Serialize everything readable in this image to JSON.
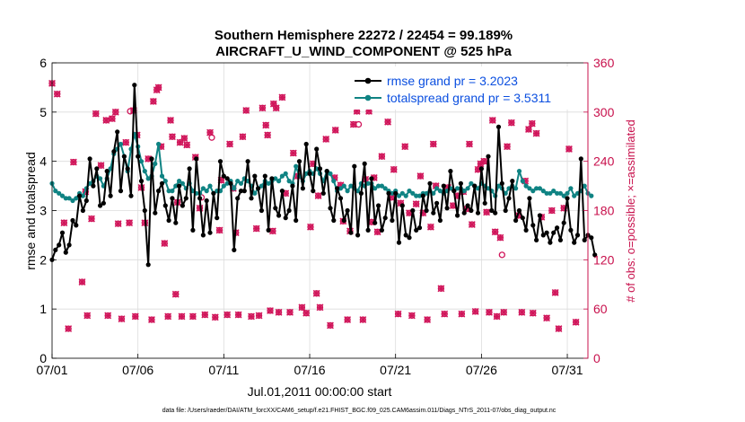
{
  "chart_data": {
    "type": "line",
    "title": "Southern Hemisphere 22272 / 22454 = 99.189%",
    "subtitle": "AIRCRAFT_U_WIND_COMPONENT @ 525 hPa",
    "xlabel": "Jul.01,2011 00:00:00 start",
    "ylabel": "rmse and totalspread",
    "y2label": "# of obs: o=possible; ×=assimilated",
    "footnote": "data file: /Users/raeder/DAI/ATM_forcXX/CAM6_setup/f.e21.FHIST_BGC.f09_025.CAM6assim.011/Diags_NTrS_2011-07/obs_diag_output.nc",
    "xlim": [
      1,
      32.2
    ],
    "ylim": [
      0,
      6
    ],
    "y2lim": [
      0,
      360
    ],
    "x_ticks": [
      1,
      6,
      11,
      16,
      21,
      26,
      31
    ],
    "x_tick_labels": [
      "07/01",
      "07/06",
      "07/11",
      "07/16",
      "07/21",
      "07/26",
      "07/31"
    ],
    "y_ticks": [
      0,
      1,
      2,
      3,
      4,
      5,
      6
    ],
    "y2_ticks": [
      0,
      60,
      120,
      180,
      240,
      300,
      360
    ],
    "grid": true,
    "legend_position": "top-right",
    "colors": {
      "rmse": "#000000",
      "spread": "#0f8383",
      "obs": "#d0155a",
      "legend_text": "#0b4fe0",
      "y2_axis": "#c8104c"
    },
    "series": [
      {
        "name": "rmse grand pr = 3.2023",
        "values": [
          2.0,
          2.2,
          2.3,
          2.55,
          2.15,
          2.3,
          2.8,
          2.7,
          3.3,
          3.0,
          3.2,
          4.05,
          3.5,
          3.85,
          3.1,
          3.15,
          3.8,
          3.3,
          4.2,
          4.6,
          3.4,
          4.1,
          3.85,
          3.3,
          5.55,
          4.1,
          3.6,
          3.0,
          1.9,
          4.05,
          2.95,
          3.4,
          3.55,
          3.1,
          2.8,
          3.25,
          2.75,
          3.5,
          3.1,
          3.25,
          3.85,
          2.6,
          4.05,
          3.25,
          2.5,
          3.2,
          2.55,
          3.35,
          2.85,
          4.0,
          3.7,
          3.65,
          3.55,
          2.2,
          3.25,
          3.4,
          3.4,
          4.0,
          3.25,
          3.7,
          3.45,
          3.0,
          3.7,
          2.6,
          3.65,
          3.05,
          2.9,
          3.4,
          2.85,
          3.0,
          3.5,
          2.8,
          4.0,
          3.45,
          4.35,
          3.75,
          3.4,
          4.25,
          3.85,
          3.35,
          3.8,
          3.05,
          2.8,
          3.45,
          3.25,
          2.8,
          3.0,
          2.55,
          3.9,
          2.5,
          3.35,
          3.95,
          2.6,
          3.65,
          2.75,
          3.1,
          2.6,
          2.85,
          3.35,
          2.8,
          3.35,
          2.35,
          3.1,
          2.5,
          2.45,
          3.0,
          2.6,
          2.65,
          3.3,
          3.0,
          3.55,
          2.95,
          3.15,
          2.8,
          3.5,
          3.05,
          3.8,
          3.4,
          2.9,
          3.55,
          2.95,
          3.1,
          3.0,
          3.5,
          2.95,
          3.85,
          3.15,
          4.1,
          3.0,
          2.95,
          4.7,
          3.55,
          3.0,
          3.25,
          3.6,
          2.8,
          3.0,
          2.85,
          2.6,
          3.25,
          2.7,
          2.4,
          2.9,
          2.5,
          2.55,
          2.35,
          2.55,
          2.65,
          2.4,
          2.75,
          3.25,
          2.6,
          2.35,
          2.5,
          4.05,
          2.4,
          2.5,
          2.45,
          2.1
        ]
      },
      {
        "name": "totalspread grand pr = 3.5311",
        "values": [
          3.55,
          3.4,
          3.35,
          3.3,
          3.25,
          3.25,
          3.2,
          3.25,
          3.35,
          3.3,
          3.45,
          3.55,
          3.6,
          3.7,
          3.65,
          3.5,
          3.65,
          3.85,
          4.15,
          4.25,
          4.35,
          4.1,
          3.8,
          4.25,
          4.55,
          4.3,
          4.0,
          3.8,
          3.65,
          3.7,
          3.95,
          4.35,
          3.7,
          3.6,
          3.4,
          3.4,
          3.5,
          3.6,
          3.55,
          3.45,
          3.55,
          3.4,
          3.35,
          3.35,
          3.45,
          3.4,
          3.5,
          3.35,
          3.4,
          3.4,
          3.5,
          3.55,
          3.6,
          3.45,
          3.6,
          3.55,
          3.65,
          3.6,
          3.5,
          3.35,
          3.45,
          3.5,
          3.6,
          3.55,
          3.6,
          3.65,
          3.6,
          3.7,
          3.75,
          3.6,
          3.55,
          3.9,
          3.7,
          3.6,
          3.75,
          3.8,
          3.75,
          3.85,
          3.75,
          3.6,
          3.8,
          3.75,
          3.6,
          3.4,
          3.45,
          3.5,
          3.4,
          3.5,
          3.45,
          3.4,
          3.55,
          3.5,
          3.55,
          3.55,
          3.45,
          3.5,
          3.5,
          3.45,
          3.4,
          3.35,
          3.4,
          3.3,
          3.35,
          3.3,
          3.4,
          3.35,
          3.3,
          3.3,
          3.35,
          3.35,
          3.4,
          3.35,
          3.45,
          3.4,
          3.35,
          3.4,
          3.45,
          3.4,
          3.45,
          3.45,
          3.4,
          3.45,
          3.55,
          3.5,
          3.45,
          3.55,
          3.5,
          3.45,
          3.4,
          3.3,
          3.5,
          3.45,
          3.35,
          3.45,
          3.5,
          3.45,
          3.8,
          3.6,
          3.5,
          3.45,
          3.4,
          3.45,
          3.45,
          3.4,
          3.35,
          3.35,
          3.4,
          3.35,
          3.35,
          3.3,
          3.35,
          3.45,
          3.3,
          3.35,
          3.4,
          3.5,
          3.35,
          3.3
        ]
      }
    ],
    "obs_possible": [
      [
        1.0,
        335
      ],
      [
        1.3,
        322
      ],
      [
        1.7,
        165
      ],
      [
        1.95,
        36
      ],
      [
        2.25,
        239
      ],
      [
        2.75,
        93
      ],
      [
        2.95,
        203
      ],
      [
        3.05,
        52
      ],
      [
        3.3,
        170
      ],
      [
        3.55,
        298
      ],
      [
        3.85,
        235
      ],
      [
        4.15,
        290
      ],
      [
        4.25,
        52
      ],
      [
        4.5,
        292
      ],
      [
        4.7,
        300
      ],
      [
        4.85,
        164
      ],
      [
        5.05,
        48
      ],
      [
        5.3,
        263
      ],
      [
        5.5,
        165
      ],
      [
        5.55,
        301
      ],
      [
        5.75,
        302
      ],
      [
        5.85,
        51
      ],
      [
        5.95,
        272
      ],
      [
        6.2,
        208
      ],
      [
        6.4,
        165
      ],
      [
        6.6,
        243
      ],
      [
        6.8,
        47
      ],
      [
        6.9,
        313
      ],
      [
        7.1,
        327
      ],
      [
        7.2,
        330
      ],
      [
        7.35,
        258
      ],
      [
        7.55,
        140
      ],
      [
        7.75,
        51
      ],
      [
        7.9,
        290
      ],
      [
        8.0,
        270
      ],
      [
        8.2,
        78
      ],
      [
        8.3,
        190
      ],
      [
        8.45,
        263
      ],
      [
        8.55,
        51
      ],
      [
        8.7,
        268
      ],
      [
        8.85,
        260
      ],
      [
        9.2,
        51
      ],
      [
        9.35,
        245
      ],
      [
        9.6,
        183
      ],
      [
        9.7,
        196
      ],
      [
        9.9,
        53
      ],
      [
        10.2,
        275
      ],
      [
        10.3,
        269
      ],
      [
        10.5,
        50
      ],
      [
        10.75,
        156
      ],
      [
        10.85,
        217
      ],
      [
        11.2,
        53
      ],
      [
        11.35,
        261
      ],
      [
        11.55,
        207
      ],
      [
        11.7,
        153
      ],
      [
        11.85,
        53
      ],
      [
        12.1,
        270
      ],
      [
        12.3,
        302
      ],
      [
        12.6,
        51
      ],
      [
        12.9,
        158
      ],
      [
        13.05,
        52
      ],
      [
        13.25,
        305
      ],
      [
        13.45,
        284
      ],
      [
        13.55,
        272
      ],
      [
        13.7,
        58
      ],
      [
        13.85,
        155
      ],
      [
        13.9,
        310
      ],
      [
        14.05,
        305
      ],
      [
        14.2,
        56
      ],
      [
        14.4,
        318
      ],
      [
        14.6,
        201
      ],
      [
        14.85,
        56
      ],
      [
        15.05,
        250
      ],
      [
        15.3,
        222
      ],
      [
        15.55,
        62
      ],
      [
        15.8,
        55
      ],
      [
        16.05,
        160
      ],
      [
        16.2,
        237
      ],
      [
        16.4,
        79
      ],
      [
        16.5,
        198
      ],
      [
        16.6,
        62
      ],
      [
        16.95,
        267
      ],
      [
        17.2,
        40
      ],
      [
        17.45,
        220
      ],
      [
        17.5,
        278
      ],
      [
        17.8,
        211
      ],
      [
        17.95,
        167
      ],
      [
        18.2,
        47
      ],
      [
        18.35,
        155
      ],
      [
        18.55,
        285
      ],
      [
        18.75,
        301
      ],
      [
        18.85,
        285
      ],
      [
        19.1,
        47
      ],
      [
        19.25,
        218
      ],
      [
        19.45,
        301
      ],
      [
        19.6,
        166
      ],
      [
        19.75,
        220
      ],
      [
        19.95,
        154
      ],
      [
        20.2,
        246
      ],
      [
        20.55,
        288
      ],
      [
        20.75,
        196
      ],
      [
        20.9,
        230
      ],
      [
        21.15,
        54
      ],
      [
        21.3,
        189
      ],
      [
        21.55,
        258
      ],
      [
        21.8,
        177
      ],
      [
        21.95,
        52
      ],
      [
        22.2,
        188
      ],
      [
        22.45,
        222
      ],
      [
        22.6,
        177
      ],
      [
        22.85,
        47
      ],
      [
        23.05,
        160
      ],
      [
        23.2,
        261
      ],
      [
        23.35,
        210
      ],
      [
        23.65,
        85
      ],
      [
        23.85,
        54
      ],
      [
        24.05,
        208
      ],
      [
        24.35,
        186
      ],
      [
        24.6,
        198
      ],
      [
        24.85,
        54
      ],
      [
        24.95,
        203
      ],
      [
        25.1,
        182
      ],
      [
        25.3,
        261
      ],
      [
        25.45,
        163
      ],
      [
        25.65,
        57
      ],
      [
        25.8,
        230
      ],
      [
        25.95,
        237
      ],
      [
        26.15,
        240
      ],
      [
        26.3,
        178
      ],
      [
        26.45,
        56
      ],
      [
        26.65,
        290
      ],
      [
        26.8,
        154
      ],
      [
        26.9,
        51
      ],
      [
        27.1,
        147
      ],
      [
        27.2,
        126
      ],
      [
        27.3,
        56
      ],
      [
        27.5,
        258
      ],
      [
        27.75,
        287
      ],
      [
        28.15,
        174
      ],
      [
        28.35,
        56
      ],
      [
        28.55,
        216
      ],
      [
        28.75,
        279
      ],
      [
        28.95,
        286
      ],
      [
        29.0,
        55
      ],
      [
        29.2,
        274
      ],
      [
        29.5,
        172
      ],
      [
        29.8,
        49
      ],
      [
        30.1,
        180
      ],
      [
        30.3,
        80
      ],
      [
        30.5,
        36
      ],
      [
        30.8,
        183
      ],
      [
        31.1,
        255
      ],
      [
        31.5,
        44
      ]
    ],
    "obs_assimilated": [
      [
        1.0,
        335
      ],
      [
        1.3,
        322
      ],
      [
        1.7,
        165
      ],
      [
        1.95,
        36
      ],
      [
        2.25,
        239
      ],
      [
        2.75,
        93
      ],
      [
        2.95,
        203
      ],
      [
        3.05,
        52
      ],
      [
        3.3,
        170
      ],
      [
        3.55,
        298
      ],
      [
        3.85,
        235
      ],
      [
        4.15,
        290
      ],
      [
        4.25,
        52
      ],
      [
        4.5,
        292
      ],
      [
        4.7,
        300
      ],
      [
        4.85,
        164
      ],
      [
        5.05,
        48
      ],
      [
        5.3,
        263
      ],
      [
        5.5,
        165
      ],
      [
        5.75,
        302
      ],
      [
        5.85,
        51
      ],
      [
        5.95,
        272
      ],
      [
        6.2,
        208
      ],
      [
        6.4,
        165
      ],
      [
        6.6,
        243
      ],
      [
        6.8,
        47
      ],
      [
        6.9,
        313
      ],
      [
        7.1,
        327
      ],
      [
        7.2,
        330
      ],
      [
        7.35,
        258
      ],
      [
        7.55,
        140
      ],
      [
        7.75,
        51
      ],
      [
        7.9,
        290
      ],
      [
        8.0,
        270
      ],
      [
        8.2,
        78
      ],
      [
        8.3,
        190
      ],
      [
        8.45,
        263
      ],
      [
        8.55,
        51
      ],
      [
        8.7,
        268
      ],
      [
        8.85,
        260
      ],
      [
        9.2,
        51
      ],
      [
        9.35,
        245
      ],
      [
        9.6,
        183
      ],
      [
        9.9,
        53
      ],
      [
        10.2,
        275
      ],
      [
        10.5,
        50
      ],
      [
        10.75,
        156
      ],
      [
        10.85,
        217
      ],
      [
        11.2,
        53
      ],
      [
        11.35,
        261
      ],
      [
        11.55,
        207
      ],
      [
        11.7,
        153
      ],
      [
        11.85,
        53
      ],
      [
        12.1,
        270
      ],
      [
        12.3,
        302
      ],
      [
        12.6,
        51
      ],
      [
        12.9,
        158
      ],
      [
        13.05,
        52
      ],
      [
        13.25,
        305
      ],
      [
        13.45,
        284
      ],
      [
        13.55,
        272
      ],
      [
        13.7,
        58
      ],
      [
        13.85,
        155
      ],
      [
        13.9,
        310
      ],
      [
        14.05,
        305
      ],
      [
        14.2,
        56
      ],
      [
        14.4,
        318
      ],
      [
        14.6,
        201
      ],
      [
        14.85,
        56
      ],
      [
        15.05,
        250
      ],
      [
        15.3,
        222
      ],
      [
        15.55,
        62
      ],
      [
        15.8,
        55
      ],
      [
        16.05,
        160
      ],
      [
        16.2,
        237
      ],
      [
        16.4,
        79
      ],
      [
        16.5,
        198
      ],
      [
        16.6,
        62
      ],
      [
        16.95,
        267
      ],
      [
        17.2,
        40
      ],
      [
        17.45,
        220
      ],
      [
        17.5,
        278
      ],
      [
        17.8,
        211
      ],
      [
        17.95,
        167
      ],
      [
        18.2,
        47
      ],
      [
        18.35,
        155
      ],
      [
        18.55,
        285
      ],
      [
        18.75,
        301
      ],
      [
        19.1,
        47
      ],
      [
        19.25,
        218
      ],
      [
        19.45,
        301
      ],
      [
        19.6,
        166
      ],
      [
        19.75,
        220
      ],
      [
        19.95,
        154
      ],
      [
        20.2,
        246
      ],
      [
        20.55,
        288
      ],
      [
        20.75,
        196
      ],
      [
        20.9,
        230
      ],
      [
        21.15,
        54
      ],
      [
        21.3,
        189
      ],
      [
        21.55,
        258
      ],
      [
        21.8,
        177
      ],
      [
        21.95,
        52
      ],
      [
        22.2,
        188
      ],
      [
        22.45,
        222
      ],
      [
        22.6,
        177
      ],
      [
        22.85,
        47
      ],
      [
        23.05,
        160
      ],
      [
        23.2,
        261
      ],
      [
        23.35,
        210
      ],
      [
        23.65,
        85
      ],
      [
        23.85,
        54
      ],
      [
        24.05,
        208
      ],
      [
        24.35,
        186
      ],
      [
        24.6,
        198
      ],
      [
        24.85,
        54
      ],
      [
        24.95,
        203
      ],
      [
        25.1,
        182
      ],
      [
        25.3,
        261
      ],
      [
        25.45,
        163
      ],
      [
        25.65,
        57
      ],
      [
        25.8,
        230
      ],
      [
        25.95,
        237
      ],
      [
        26.15,
        240
      ],
      [
        26.3,
        178
      ],
      [
        26.45,
        56
      ],
      [
        26.65,
        290
      ],
      [
        26.8,
        154
      ],
      [
        26.9,
        51
      ],
      [
        27.1,
        147
      ],
      [
        27.3,
        56
      ],
      [
        27.5,
        258
      ],
      [
        27.75,
        287
      ],
      [
        28.15,
        174
      ],
      [
        28.35,
        56
      ],
      [
        28.55,
        216
      ],
      [
        28.75,
        279
      ],
      [
        28.95,
        286
      ],
      [
        29.0,
        55
      ],
      [
        29.2,
        274
      ],
      [
        29.5,
        172
      ],
      [
        29.8,
        49
      ],
      [
        30.1,
        180
      ],
      [
        30.3,
        80
      ],
      [
        30.5,
        36
      ],
      [
        30.8,
        183
      ],
      [
        31.1,
        255
      ],
      [
        31.5,
        44
      ]
    ]
  }
}
